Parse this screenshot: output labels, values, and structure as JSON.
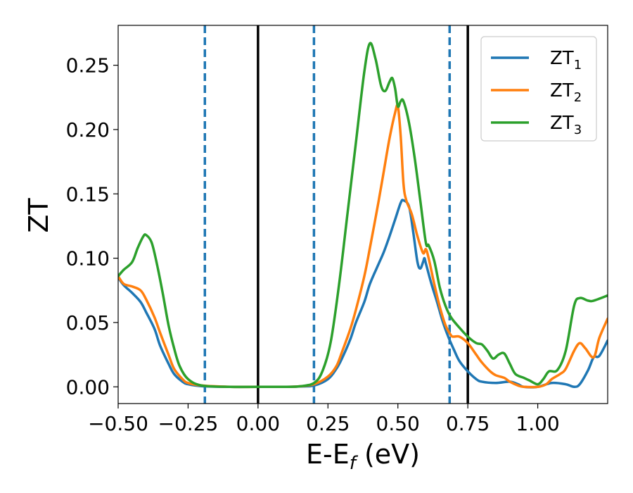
{
  "chart_data": {
    "type": "line",
    "xlabel": "E-E",
    "xlabel_sub": "f",
    "xlabel_unit": " (eV)",
    "ylabel": "ZT",
    "xlim": [
      -0.5,
      1.25
    ],
    "ylim": [
      -0.013,
      0.281
    ],
    "xticks": [
      -0.5,
      -0.25,
      0.0,
      0.25,
      0.5,
      0.75,
      1.0
    ],
    "xtick_labels": [
      "−0.50",
      "−0.25",
      "0.00",
      "0.25",
      "0.50",
      "0.75",
      "1.00"
    ],
    "yticks": [
      0.0,
      0.05,
      0.1,
      0.15,
      0.2,
      0.25
    ],
    "ytick_labels": [
      "0.00",
      "0.05",
      "0.10",
      "0.15",
      "0.20",
      "0.25"
    ],
    "legend_position": "top-right",
    "vlines": [
      {
        "x": -0.19,
        "style": "dashed",
        "color": "#1f77b4"
      },
      {
        "x": 0.0,
        "style": "solid",
        "color": "#000000"
      },
      {
        "x": 0.2,
        "style": "dashed",
        "color": "#1f77b4"
      },
      {
        "x": 0.685,
        "style": "dashed",
        "color": "#1f77b4"
      },
      {
        "x": 0.75,
        "style": "solid",
        "color": "#000000"
      }
    ],
    "series": [
      {
        "name": "ZT",
        "name_sub": "1",
        "color": "#1f77b4",
        "points": [
          [
            -0.5,
            0.085
          ],
          [
            -0.48,
            0.079
          ],
          [
            -0.45,
            0.073
          ],
          [
            -0.42,
            0.066
          ],
          [
            -0.4,
            0.058
          ],
          [
            -0.37,
            0.045
          ],
          [
            -0.35,
            0.032
          ],
          [
            -0.32,
            0.018
          ],
          [
            -0.3,
            0.01
          ],
          [
            -0.27,
            0.004
          ],
          [
            -0.25,
            0.002
          ],
          [
            -0.2,
            0.0005
          ],
          [
            -0.1,
            0.0
          ],
          [
            0.0,
            0.0
          ],
          [
            0.1,
            0.0
          ],
          [
            0.15,
            0.0003
          ],
          [
            0.2,
            0.001
          ],
          [
            0.25,
            0.006
          ],
          [
            0.28,
            0.014
          ],
          [
            0.3,
            0.022
          ],
          [
            0.33,
            0.037
          ],
          [
            0.35,
            0.05
          ],
          [
            0.38,
            0.066
          ],
          [
            0.4,
            0.08
          ],
          [
            0.43,
            0.095
          ],
          [
            0.45,
            0.105
          ],
          [
            0.47,
            0.117
          ],
          [
            0.49,
            0.13
          ],
          [
            0.51,
            0.143
          ],
          [
            0.52,
            0.145
          ],
          [
            0.54,
            0.14
          ],
          [
            0.555,
            0.12
          ],
          [
            0.57,
            0.097
          ],
          [
            0.58,
            0.092
          ],
          [
            0.59,
            0.097
          ],
          [
            0.595,
            0.1
          ],
          [
            0.6,
            0.096
          ],
          [
            0.62,
            0.08
          ],
          [
            0.64,
            0.066
          ],
          [
            0.66,
            0.051
          ],
          [
            0.68,
            0.039
          ],
          [
            0.7,
            0.029
          ],
          [
            0.72,
            0.02
          ],
          [
            0.75,
            0.012
          ],
          [
            0.78,
            0.006
          ],
          [
            0.8,
            0.004
          ],
          [
            0.85,
            0.003
          ],
          [
            0.9,
            0.004
          ],
          [
            0.93,
            0.002
          ],
          [
            0.95,
            0.0
          ],
          [
            1.0,
            0.0
          ],
          [
            1.05,
            0.003
          ],
          [
            1.1,
            0.002
          ],
          [
            1.13,
            0.0
          ],
          [
            1.15,
            0.002
          ],
          [
            1.18,
            0.013
          ],
          [
            1.2,
            0.023
          ],
          [
            1.22,
            0.024
          ],
          [
            1.25,
            0.036
          ]
        ]
      },
      {
        "name": "ZT",
        "name_sub": "2",
        "color": "#ff7f0e",
        "points": [
          [
            -0.5,
            0.086
          ],
          [
            -0.48,
            0.08
          ],
          [
            -0.45,
            0.078
          ],
          [
            -0.42,
            0.075
          ],
          [
            -0.4,
            0.068
          ],
          [
            -0.37,
            0.054
          ],
          [
            -0.35,
            0.042
          ],
          [
            -0.32,
            0.025
          ],
          [
            -0.3,
            0.014
          ],
          [
            -0.27,
            0.006
          ],
          [
            -0.25,
            0.003
          ],
          [
            -0.2,
            0.001
          ],
          [
            -0.1,
            0.0
          ],
          [
            0.0,
            0.0
          ],
          [
            0.1,
            0.0
          ],
          [
            0.15,
            0.0004
          ],
          [
            0.2,
            0.002
          ],
          [
            0.25,
            0.008
          ],
          [
            0.28,
            0.016
          ],
          [
            0.3,
            0.027
          ],
          [
            0.33,
            0.045
          ],
          [
            0.35,
            0.06
          ],
          [
            0.38,
            0.086
          ],
          [
            0.4,
            0.108
          ],
          [
            0.43,
            0.143
          ],
          [
            0.45,
            0.168
          ],
          [
            0.47,
            0.193
          ],
          [
            0.49,
            0.213
          ],
          [
            0.5,
            0.218
          ],
          [
            0.51,
            0.195
          ],
          [
            0.52,
            0.158
          ],
          [
            0.53,
            0.145
          ],
          [
            0.55,
            0.134
          ],
          [
            0.57,
            0.117
          ],
          [
            0.59,
            0.104
          ],
          [
            0.6,
            0.107
          ],
          [
            0.61,
            0.1
          ],
          [
            0.63,
            0.08
          ],
          [
            0.65,
            0.062
          ],
          [
            0.67,
            0.048
          ],
          [
            0.69,
            0.04
          ],
          [
            0.7,
            0.039
          ],
          [
            0.72,
            0.039
          ],
          [
            0.75,
            0.034
          ],
          [
            0.78,
            0.025
          ],
          [
            0.8,
            0.019
          ],
          [
            0.83,
            0.012
          ],
          [
            0.85,
            0.009
          ],
          [
            0.88,
            0.007
          ],
          [
            0.9,
            0.004
          ],
          [
            0.93,
            0.001
          ],
          [
            0.95,
            0.0
          ],
          [
            1.0,
            0.0
          ],
          [
            1.03,
            0.002
          ],
          [
            1.05,
            0.006
          ],
          [
            1.08,
            0.01
          ],
          [
            1.1,
            0.014
          ],
          [
            1.13,
            0.028
          ],
          [
            1.15,
            0.034
          ],
          [
            1.17,
            0.03
          ],
          [
            1.2,
            0.023
          ],
          [
            1.22,
            0.038
          ],
          [
            1.25,
            0.053
          ]
        ]
      },
      {
        "name": "ZT",
        "name_sub": "3",
        "color": "#2ca02c",
        "points": [
          [
            -0.5,
            0.086
          ],
          [
            -0.48,
            0.091
          ],
          [
            -0.45,
            0.097
          ],
          [
            -0.43,
            0.108
          ],
          [
            -0.41,
            0.117
          ],
          [
            -0.4,
            0.118
          ],
          [
            -0.38,
            0.112
          ],
          [
            -0.36,
            0.094
          ],
          [
            -0.34,
            0.072
          ],
          [
            -0.32,
            0.048
          ],
          [
            -0.3,
            0.03
          ],
          [
            -0.28,
            0.016
          ],
          [
            -0.25,
            0.006
          ],
          [
            -0.2,
            0.001
          ],
          [
            -0.1,
            0.0
          ],
          [
            0.0,
            0.0
          ],
          [
            0.1,
            0.0
          ],
          [
            0.15,
            0.0004
          ],
          [
            0.2,
            0.003
          ],
          [
            0.23,
            0.012
          ],
          [
            0.26,
            0.035
          ],
          [
            0.29,
            0.08
          ],
          [
            0.32,
            0.135
          ],
          [
            0.35,
            0.19
          ],
          [
            0.38,
            0.245
          ],
          [
            0.4,
            0.267
          ],
          [
            0.42,
            0.255
          ],
          [
            0.44,
            0.234
          ],
          [
            0.455,
            0.23
          ],
          [
            0.47,
            0.237
          ],
          [
            0.48,
            0.24
          ],
          [
            0.49,
            0.232
          ],
          [
            0.5,
            0.218
          ],
          [
            0.51,
            0.222
          ],
          [
            0.52,
            0.222
          ],
          [
            0.54,
            0.205
          ],
          [
            0.56,
            0.178
          ],
          [
            0.58,
            0.145
          ],
          [
            0.6,
            0.112
          ],
          [
            0.61,
            0.11
          ],
          [
            0.63,
            0.098
          ],
          [
            0.65,
            0.077
          ],
          [
            0.67,
            0.063
          ],
          [
            0.69,
            0.054
          ],
          [
            0.72,
            0.046
          ],
          [
            0.75,
            0.039
          ],
          [
            0.78,
            0.034
          ],
          [
            0.8,
            0.033
          ],
          [
            0.82,
            0.028
          ],
          [
            0.84,
            0.022
          ],
          [
            0.86,
            0.025
          ],
          [
            0.88,
            0.026
          ],
          [
            0.9,
            0.018
          ],
          [
            0.92,
            0.01
          ],
          [
            0.95,
            0.007
          ],
          [
            0.97,
            0.005
          ],
          [
            1.0,
            0.002
          ],
          [
            1.02,
            0.006
          ],
          [
            1.04,
            0.012
          ],
          [
            1.07,
            0.013
          ],
          [
            1.1,
            0.028
          ],
          [
            1.13,
            0.063
          ],
          [
            1.15,
            0.069
          ],
          [
            1.18,
            0.067
          ],
          [
            1.2,
            0.067
          ],
          [
            1.25,
            0.071
          ]
        ]
      }
    ]
  }
}
